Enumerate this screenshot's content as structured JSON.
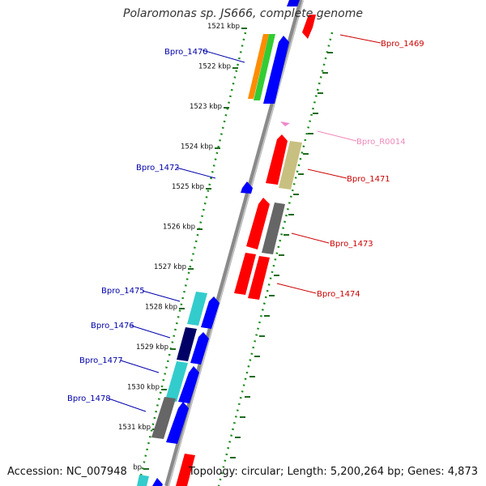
{
  "title": "Polaromonas sp. JS666, complete genome",
  "footer": {
    "accession": "Accession: NC_007948",
    "topology": "Topology: circular; Length: 5,200,264 bp; Genes: 4,873"
  },
  "colors": {
    "backbone": "#8c8c8c",
    "dotted_track": "#1a8a1a",
    "minor_tick": "#1f6b1f",
    "label_blue": "#0000aa",
    "label_red": "#cc0000",
    "label_pink": "#ee88bb"
  },
  "ticks": [
    "1521 kbp",
    "1522 kbp",
    "1523 kbp",
    "1524 kbp",
    "1525 kbp",
    "1526 kbp",
    "1527 kbp",
    "1528 kbp",
    "1529 kbp",
    "1530 kbp",
    "1531 kbp",
    "bp"
  ],
  "gene_labels": {
    "Bpro_1469": "Bpro_1469",
    "Bpro_1470": "Bpro_1470",
    "Bpro_R0014": "Bpro_R0014",
    "Bpro_1471": "Bpro_1471",
    "Bpro_1472": "Bpro_1472",
    "Bpro_1473": "Bpro_1473",
    "Bpro_1474": "Bpro_1474",
    "Bpro_1475": "Bpro_1475",
    "Bpro_1476": "Bpro_1476",
    "Bpro_1477": "Bpro_1477",
    "Bpro_1478": "Bpro_1478"
  }
}
